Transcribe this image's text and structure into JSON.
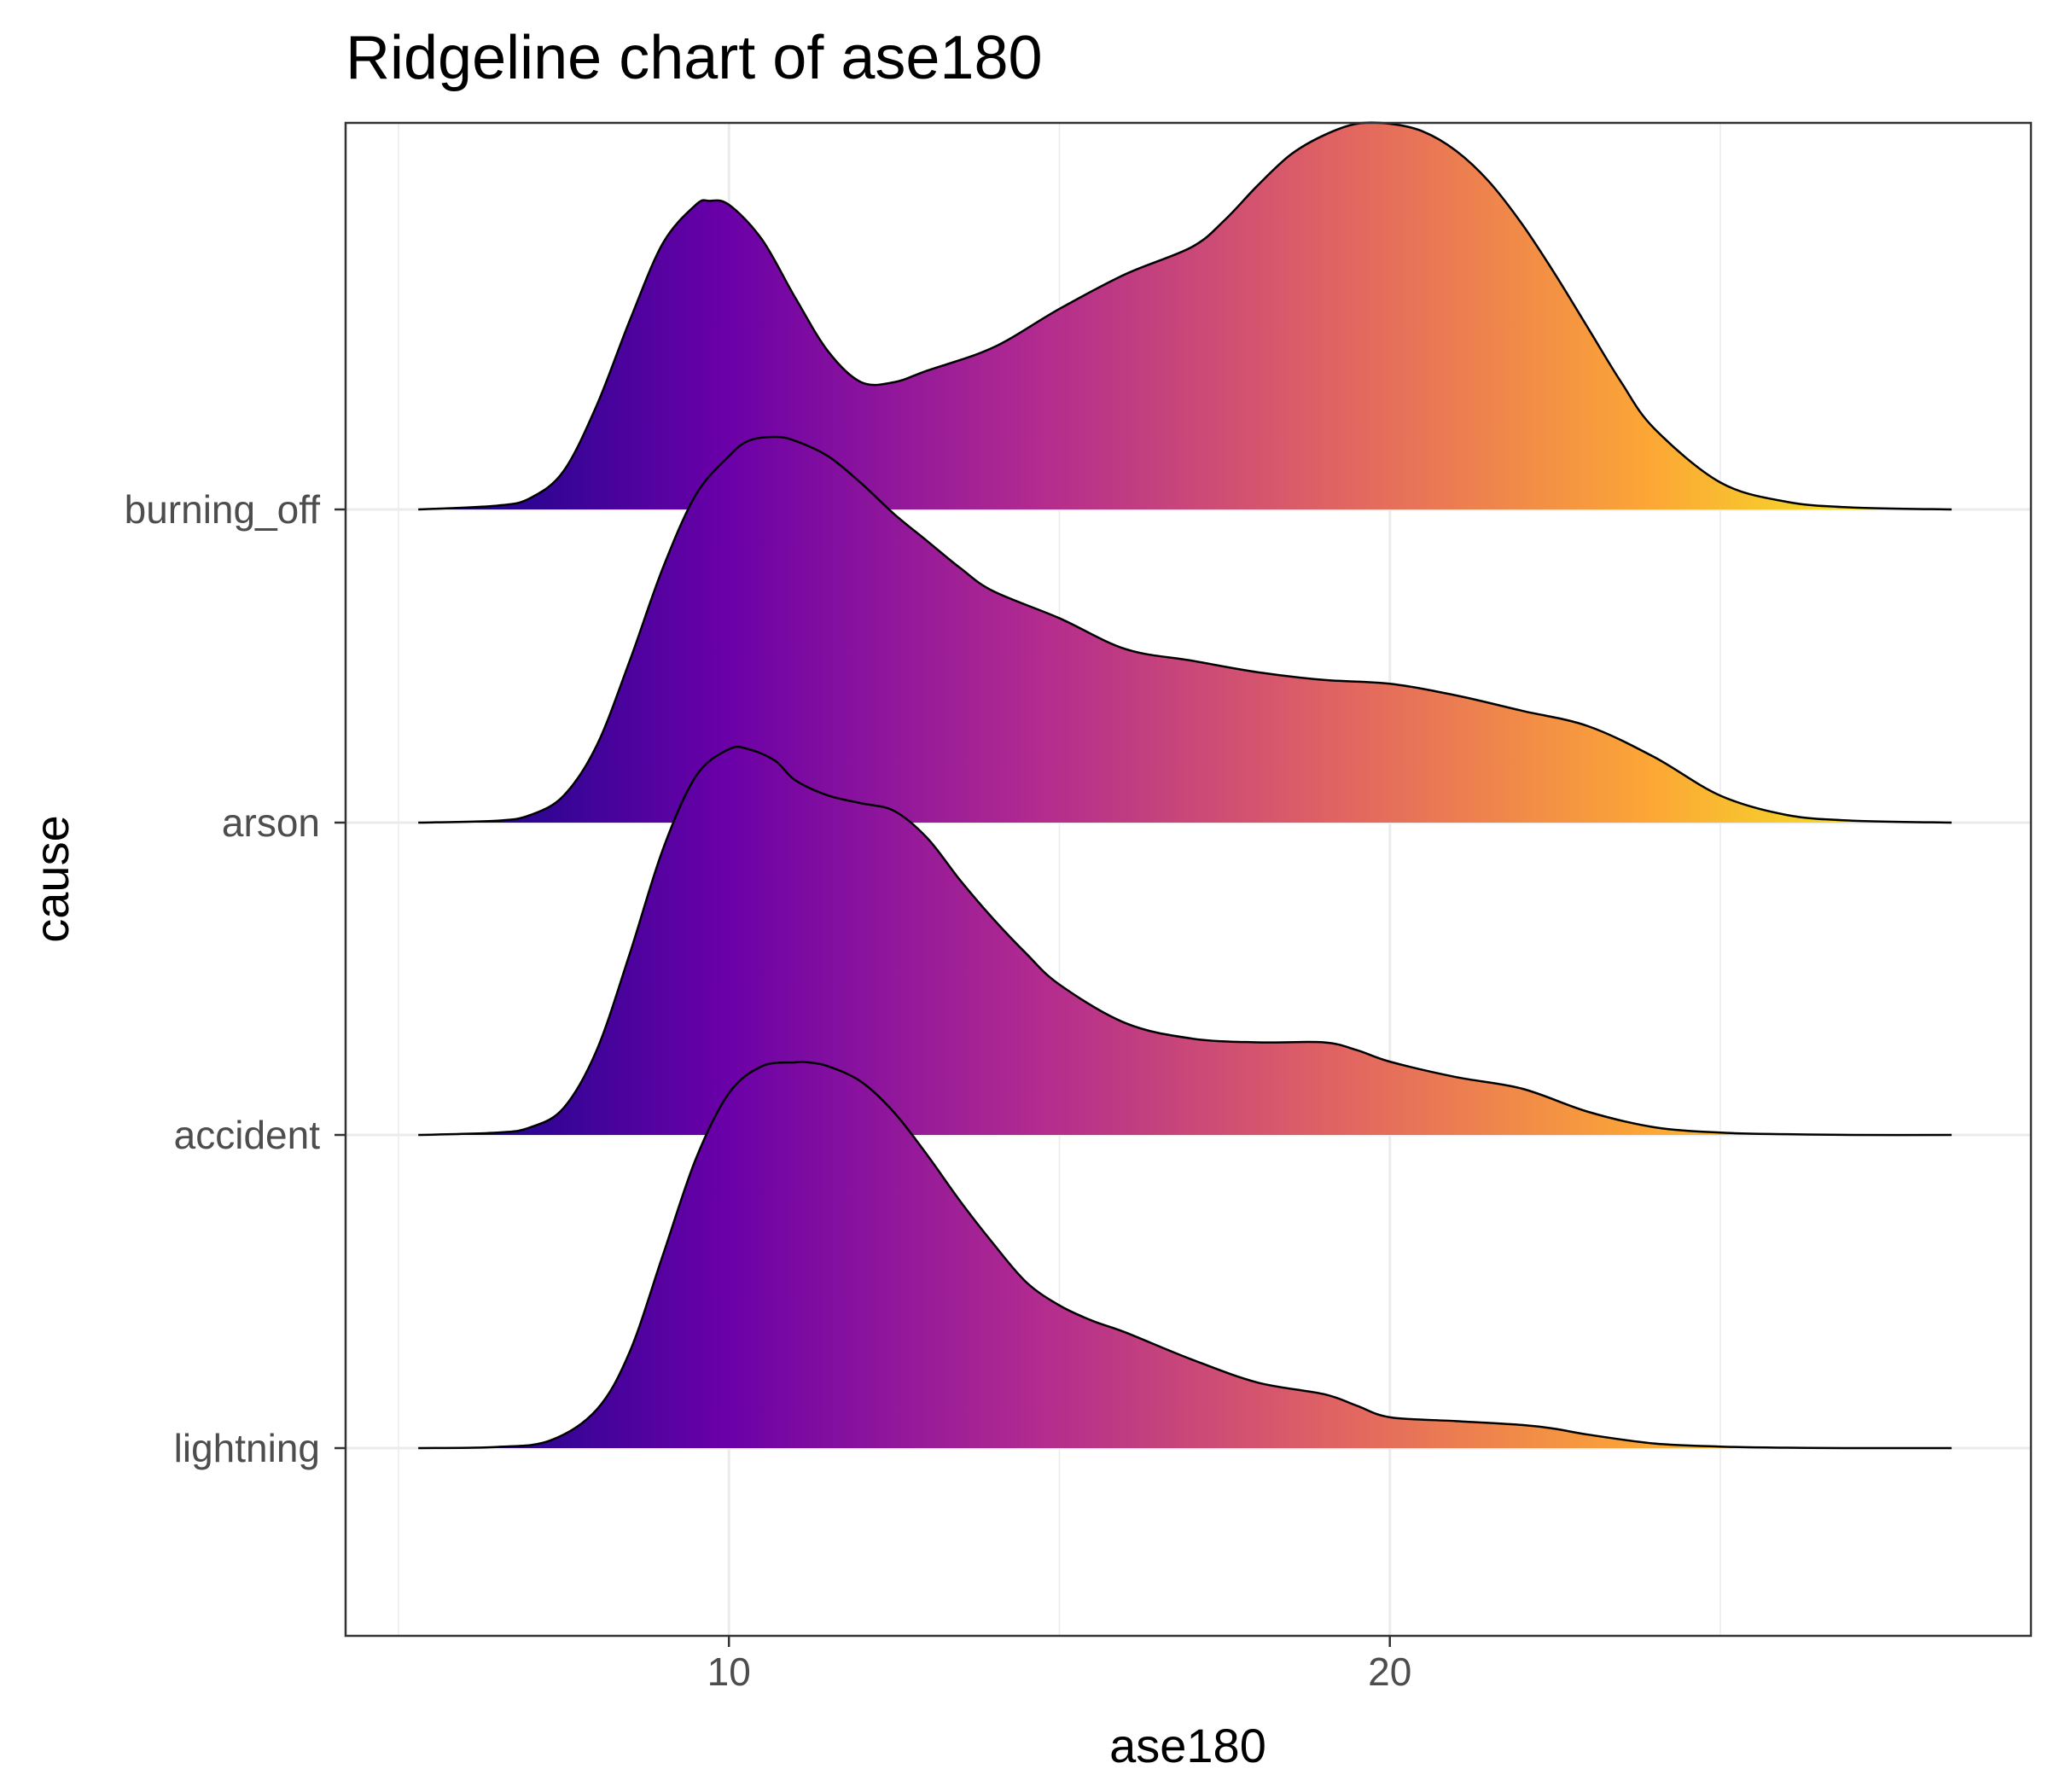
{
  "chart_data": {
    "type": "area",
    "title": "Ridgeline chart of ase180",
    "xlabel": "ase180",
    "ylabel": "cause",
    "xlim": [
      4.2,
      29.7
    ],
    "x_ticks": [
      10,
      20
    ],
    "x_minor_grid": [
      5,
      15,
      25
    ],
    "grid": true,
    "fill_gradient": [
      "#0d0887",
      "#6a00a8",
      "#b12a90",
      "#e16462",
      "#fca636",
      "#f0f921"
    ],
    "categories": [
      "lightning",
      "accident",
      "arson",
      "burning_off"
    ],
    "series": [
      {
        "name": "lightning",
        "x": [
          5.3,
          6.5,
          7.3,
          8.0,
          8.5,
          9.0,
          9.5,
          10.0,
          10.5,
          11.0,
          11.2,
          11.5,
          12.0,
          12.5,
          13.0,
          13.5,
          14.0,
          14.5,
          15.0,
          15.5,
          16.0,
          17.0,
          18.0,
          19.0,
          19.5,
          20.0,
          21.0,
          22.0,
          22.5,
          23.0,
          24.0,
          25.0,
          26.0,
          27.0,
          28.5
        ],
        "y": [
          0.0,
          0.003,
          0.02,
          0.1,
          0.25,
          0.5,
          0.75,
          0.92,
          0.99,
          1.0,
          1.0,
          0.99,
          0.95,
          0.87,
          0.76,
          0.64,
          0.53,
          0.43,
          0.37,
          0.33,
          0.3,
          0.23,
          0.17,
          0.14,
          0.11,
          0.08,
          0.07,
          0.06,
          0.05,
          0.035,
          0.012,
          0.004,
          0.001,
          0.0,
          0.0
        ]
      },
      {
        "name": "accident",
        "x": [
          5.3,
          6.5,
          7.0,
          7.5,
          8.0,
          8.5,
          9.0,
          9.5,
          10.0,
          10.3,
          10.7,
          11.0,
          11.5,
          12.0,
          12.5,
          13.0,
          13.5,
          14.0,
          14.5,
          15.0,
          16.0,
          17.0,
          18.0,
          19.0,
          19.5,
          20.0,
          21.0,
          22.0,
          23.0,
          24.0,
          25.0,
          26.0,
          27.0,
          28.5
        ],
        "y": [
          0.0,
          0.006,
          0.02,
          0.07,
          0.22,
          0.47,
          0.74,
          0.93,
          1.0,
          1.0,
          0.97,
          0.92,
          0.88,
          0.86,
          0.84,
          0.77,
          0.66,
          0.56,
          0.47,
          0.39,
          0.29,
          0.25,
          0.24,
          0.24,
          0.22,
          0.19,
          0.15,
          0.12,
          0.06,
          0.02,
          0.006,
          0.002,
          0.0,
          0.0
        ]
      },
      {
        "name": "arson",
        "x": [
          5.3,
          6.5,
          7.0,
          7.5,
          8.0,
          8.5,
          9.0,
          9.5,
          10.0,
          10.3,
          10.7,
          11.0,
          11.5,
          12.0,
          12.5,
          13.0,
          13.5,
          14.0,
          15.0,
          16.0,
          17.0,
          18.0,
          19.0,
          20.0,
          21.0,
          22.0,
          23.0,
          24.0,
          25.0,
          26.0,
          27.0,
          28.5
        ],
        "y": [
          0.0,
          0.005,
          0.02,
          0.07,
          0.2,
          0.42,
          0.66,
          0.85,
          0.95,
          0.99,
          1.0,
          0.99,
          0.95,
          0.88,
          0.8,
          0.73,
          0.66,
          0.6,
          0.53,
          0.45,
          0.42,
          0.39,
          0.37,
          0.36,
          0.33,
          0.29,
          0.25,
          0.17,
          0.07,
          0.02,
          0.005,
          0.0
        ]
      },
      {
        "name": "burning_off",
        "x": [
          5.3,
          6.5,
          7.0,
          7.5,
          8.0,
          8.5,
          9.0,
          9.5,
          9.7,
          10.0,
          10.5,
          11.0,
          11.5,
          12.0,
          12.5,
          13.0,
          14.0,
          15.0,
          16.0,
          17.0,
          17.5,
          18.0,
          18.5,
          19.0,
          19.5,
          20.0,
          20.5,
          21.0,
          21.5,
          22.0,
          22.5,
          23.0,
          23.5,
          24.0,
          25.0,
          26.0,
          27.0,
          28.5
        ],
        "y": [
          0.0,
          0.01,
          0.03,
          0.1,
          0.27,
          0.49,
          0.69,
          0.79,
          0.8,
          0.79,
          0.7,
          0.55,
          0.41,
          0.33,
          0.33,
          0.36,
          0.42,
          0.52,
          0.61,
          0.68,
          0.75,
          0.84,
          0.92,
          0.97,
          1.0,
          1.0,
          0.98,
          0.93,
          0.85,
          0.74,
          0.61,
          0.47,
          0.33,
          0.21,
          0.07,
          0.02,
          0.005,
          0.0
        ]
      }
    ]
  }
}
